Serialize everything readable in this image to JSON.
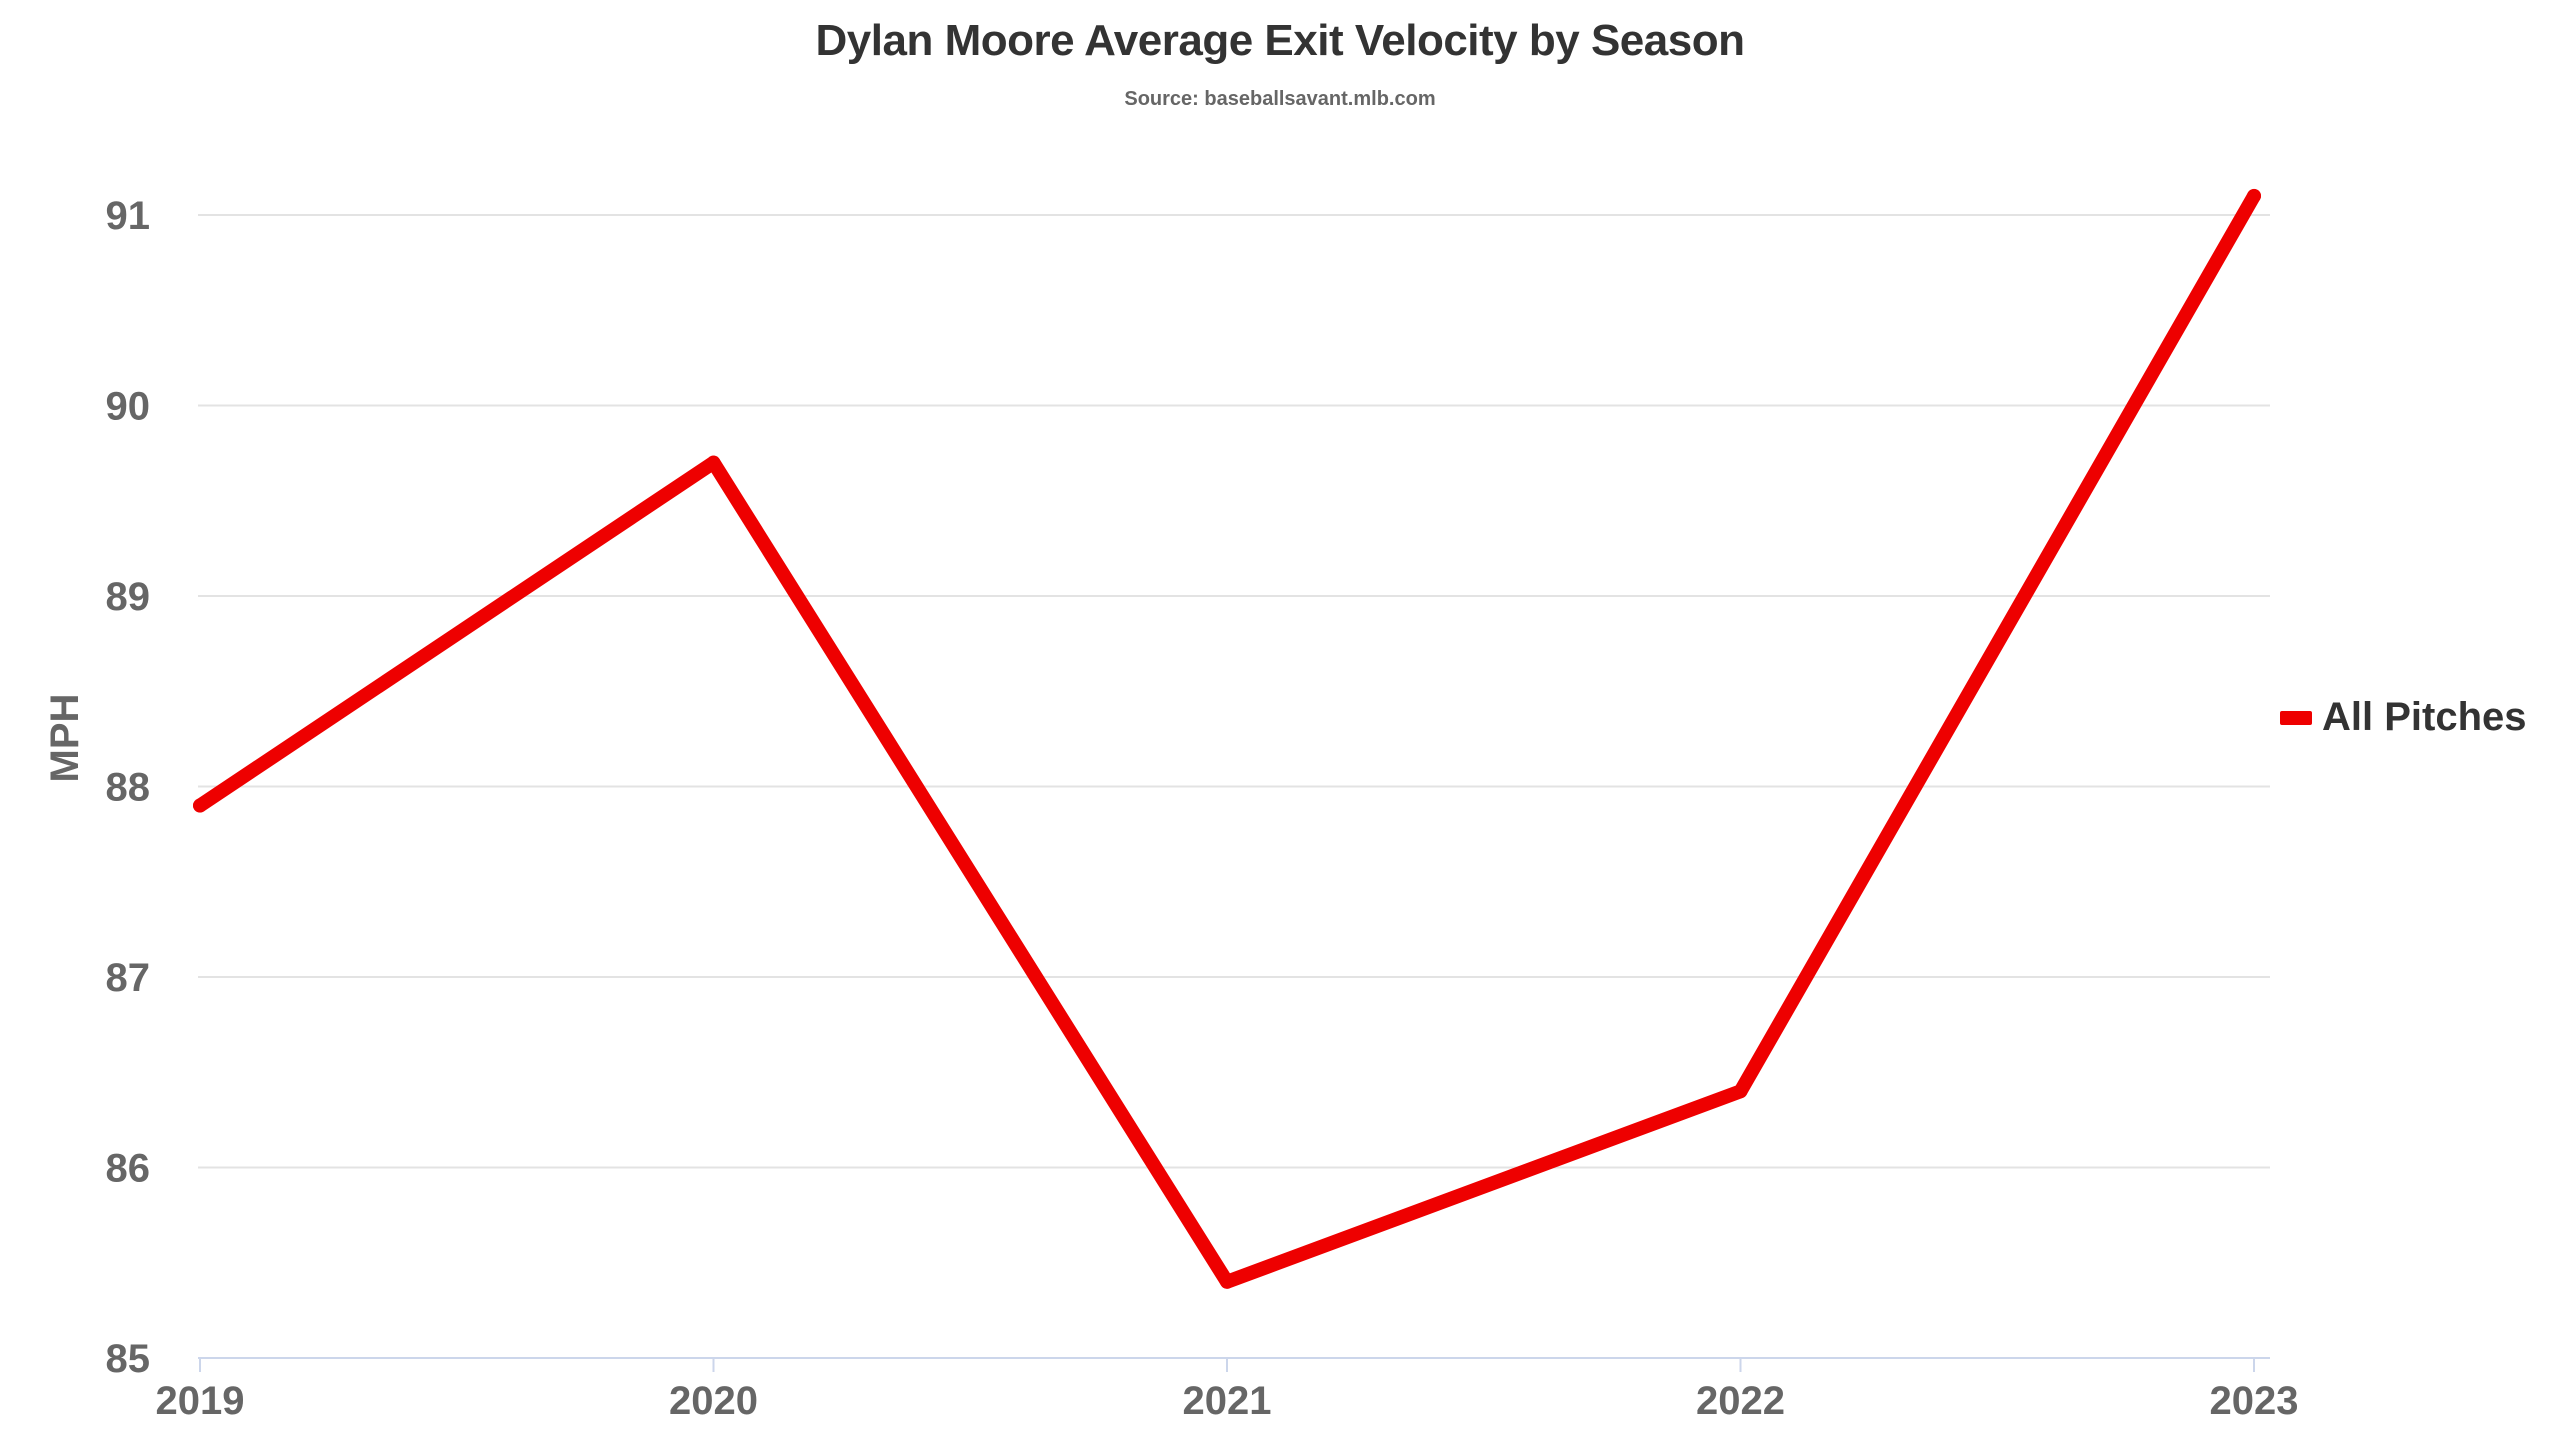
{
  "chart_data": {
    "type": "line",
    "title": "Dylan Moore Average Exit Velocity by Season",
    "subtitle": "Source: baseballsavant.mlb.com",
    "xlabel": "",
    "ylabel": "MPH",
    "categories": [
      "2019",
      "2020",
      "2021",
      "2022",
      "2023"
    ],
    "series": [
      {
        "name": "All Pitches",
        "color": "#ee0000",
        "values": [
          87.9,
          89.7,
          85.4,
          86.4,
          91.1
        ]
      }
    ],
    "ylim": [
      85,
      91
    ],
    "y_ticks": [
      "85",
      "86",
      "87",
      "88",
      "89",
      "90",
      "91"
    ],
    "grid": true,
    "legend_position": "right"
  }
}
